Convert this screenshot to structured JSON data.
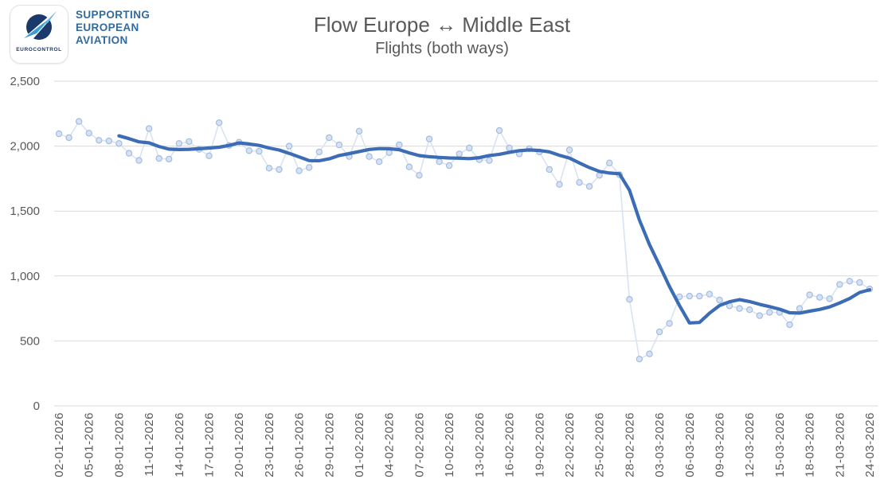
{
  "header": {
    "logo": {
      "label": "EUROCONTROL",
      "tagline_lines": [
        "SUPPORTING",
        "EUROPEAN",
        "AVIATION"
      ]
    }
  },
  "colors": {
    "title_text": "#595959",
    "axis_text": "#595959",
    "gridline": "#d9d9d9",
    "daily_line": "#d9e3f3",
    "daily_marker_fill": "#d6e2f4",
    "daily_marker_stroke": "#a3bce0",
    "average_line": "#3c6cb5",
    "logo_navy": "#1b3a6b",
    "logo_swoosh": "#3d9bd5",
    "tagline_text": "#336a9c"
  },
  "chart_data": {
    "type": "line",
    "title": "Flow Europe ↔ Middle East",
    "subtitle": "Flights (both ways)",
    "x_start_date": "02-01-2026",
    "x_tick_every": 3,
    "x_tick_labels": [
      "02-01-2026",
      "05-01-2026",
      "08-01-2026",
      "11-01-2026",
      "14-01-2026",
      "17-01-2026",
      "20-01-2026",
      "23-01-2026",
      "26-01-2026",
      "29-01-2026",
      "01-02-2026",
      "04-02-2026",
      "07-02-2026",
      "10-02-2026",
      "13-02-2026",
      "16-02-2026",
      "19-02-2026",
      "22-02-2026",
      "25-02-2026",
      "28-02-2026",
      "03-03-2026",
      "06-03-2026",
      "09-03-2026",
      "12-03-2026",
      "15-03-2026",
      "18-03-2026",
      "21-03-2026",
      "24-03-2026"
    ],
    "ylim": [
      0,
      2500
    ],
    "y_ticks": [
      0,
      500,
      1000,
      1500,
      2000,
      2500
    ],
    "y_tick_labels": [
      "0",
      "500",
      "1,000",
      "1,500",
      "2,000",
      "2,500"
    ],
    "grid": "horizontal",
    "legend": "none",
    "series": [
      {
        "name": "Daily flights",
        "style": "line-markers",
        "values": [
          2095,
          2065,
          2190,
          2100,
          2045,
          2040,
          2020,
          1945,
          1890,
          2135,
          1905,
          1900,
          2020,
          2035,
          1975,
          1925,
          2180,
          2005,
          2030,
          1965,
          1960,
          1830,
          1820,
          2000,
          1810,
          1835,
          1955,
          2065,
          2010,
          1920,
          2115,
          1920,
          1880,
          1950,
          2010,
          1840,
          1775,
          2055,
          1880,
          1850,
          1940,
          1985,
          1895,
          1890,
          2120,
          1985,
          1940,
          1980,
          1955,
          1820,
          1705,
          1970,
          1720,
          1690,
          1775,
          1870,
          1780,
          820,
          360,
          400,
          570,
          635,
          840,
          845,
          845,
          860,
          815,
          770,
          750,
          740,
          695,
          720,
          720,
          625,
          750,
          855,
          835,
          825,
          935,
          960,
          950,
          900
        ]
      },
      {
        "name": "7-day moving average",
        "style": "thick-line",
        "window": 7,
        "derived_from": "Daily flights"
      }
    ]
  }
}
